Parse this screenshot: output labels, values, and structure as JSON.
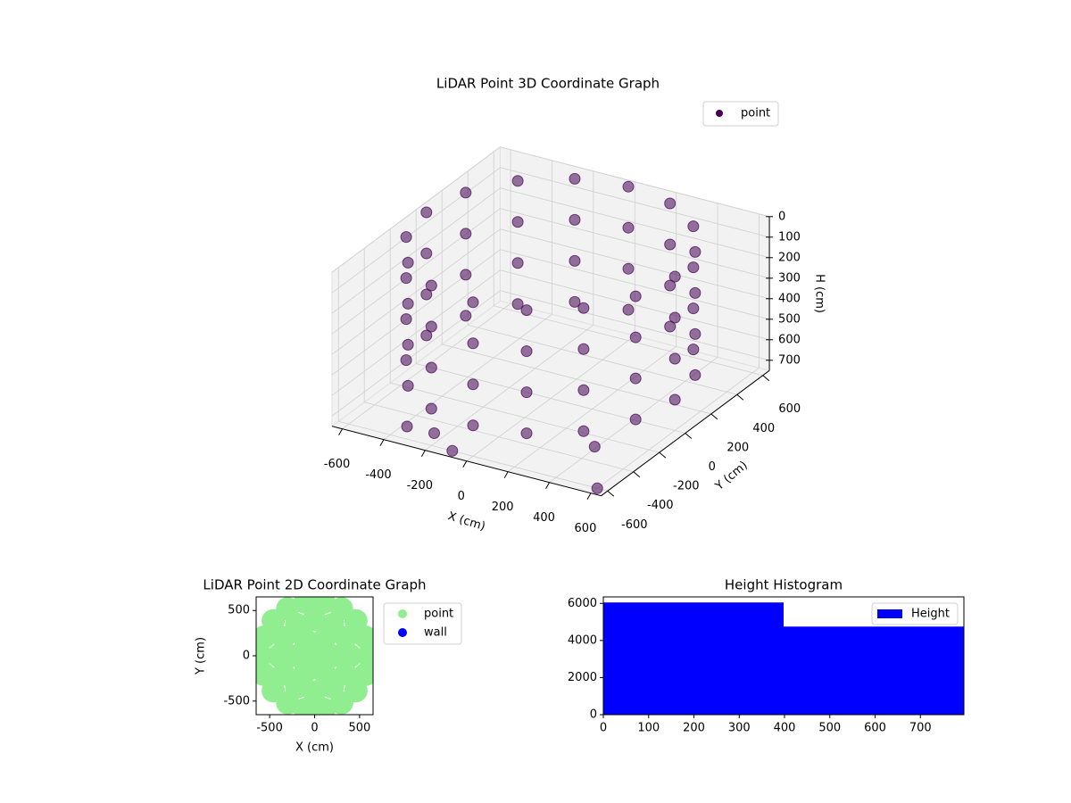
{
  "chart_data": [
    {
      "type": "scatter3d",
      "title": "LiDAR Point 3D Coordinate Graph",
      "xlabel": "X (cm)",
      "ylabel": "Y (cm)",
      "zlabel": "H (cm)",
      "xlim": [
        -650,
        650
      ],
      "ylim": [
        -650,
        650
      ],
      "zlim": [
        0,
        750
      ],
      "z_inverted": true,
      "xticks": [
        -600,
        -400,
        -200,
        0,
        200,
        400,
        600
      ],
      "yticks": [
        -600,
        -400,
        -200,
        0,
        200,
        400,
        600
      ],
      "zticks": [
        0,
        100,
        200,
        300,
        400,
        500,
        600,
        700
      ],
      "grid": true,
      "legend": "upper right",
      "series": [
        {
          "name": "point",
          "color": "#440154",
          "x": [
            600,
            554,
            424,
            230,
            0,
            -230,
            -424,
            -554,
            -600,
            -554,
            -424,
            -230,
            0,
            230,
            424,
            554,
            600,
            554,
            424,
            230,
            0,
            -230,
            -424,
            -554,
            -600,
            -554,
            -424,
            -230,
            0,
            230,
            424,
            554,
            600,
            554,
            424,
            230,
            0,
            -230,
            -424,
            -554,
            -600,
            -554,
            -424,
            -230,
            0,
            230,
            424,
            554,
            600,
            554,
            424,
            230,
            0,
            -230,
            -424,
            -554,
            -600,
            -554,
            -424,
            -230,
            0,
            230,
            424,
            554,
            -250,
            -100,
            400,
            600,
            -350
          ],
          "y": [
            0,
            230,
            424,
            554,
            600,
            554,
            424,
            230,
            0,
            -230,
            -424,
            -554,
            -600,
            -554,
            -424,
            -230,
            0,
            230,
            424,
            554,
            600,
            554,
            424,
            230,
            0,
            -230,
            -424,
            -554,
            -600,
            -554,
            -424,
            -230,
            0,
            230,
            424,
            554,
            600,
            554,
            424,
            230,
            0,
            -230,
            -424,
            -554,
            -600,
            -554,
            -424,
            -230,
            0,
            230,
            424,
            554,
            600,
            554,
            424,
            230,
            0,
            -230,
            -424,
            -554,
            -600,
            -554,
            -424,
            -230,
            -500,
            -600,
            -300,
            -600,
            -550
          ],
          "z": [
            0,
            0,
            0,
            0,
            0,
            0,
            0,
            0,
            0,
            0,
            0,
            0,
            0,
            0,
            0,
            0,
            200,
            200,
            200,
            200,
            200,
            200,
            200,
            200,
            200,
            200,
            200,
            200,
            200,
            200,
            200,
            200,
            400,
            400,
            400,
            400,
            400,
            400,
            400,
            400,
            400,
            400,
            400,
            400,
            400,
            400,
            400,
            400,
            600,
            600,
            600,
            600,
            600,
            600,
            600,
            600,
            600,
            600,
            600,
            600,
            600,
            600,
            600,
            600,
            750,
            750,
            740,
            750,
            720
          ]
        }
      ]
    },
    {
      "type": "scatter",
      "title": "LiDAR Point 2D Coordinate Graph",
      "xlabel": "X (cm)",
      "ylabel": "Y (cm)",
      "xlim": [
        -650,
        650
      ],
      "ylim": [
        -650,
        650
      ],
      "xticks": [
        -500,
        0,
        500
      ],
      "yticks": [
        -500,
        0,
        500
      ],
      "legend": "outside right",
      "series": [
        {
          "name": "point",
          "color": "#90ee90",
          "x": [
            0,
            200,
            100,
            -100,
            -200,
            -100,
            100,
            400,
            346,
            200,
            0,
            -200,
            -346,
            -400,
            -346,
            -200,
            0,
            200,
            346,
            600,
            564,
            460,
            300,
            104,
            -104,
            -300,
            -460,
            -564,
            -600,
            -564,
            -460,
            -300,
            -104,
            104,
            300,
            460,
            564
          ],
          "y": [
            0,
            0,
            173,
            173,
            0,
            -173,
            -173,
            0,
            200,
            346,
            400,
            346,
            200,
            0,
            -200,
            -346,
            -400,
            -346,
            -200,
            0,
            205,
            386,
            520,
            591,
            591,
            520,
            386,
            205,
            0,
            -205,
            -386,
            -520,
            -591,
            -591,
            -520,
            -386,
            -205
          ]
        },
        {
          "name": "wall",
          "color": "#0000ff",
          "x": [],
          "y": []
        }
      ]
    },
    {
      "type": "histogram",
      "title": "Height Histogram",
      "label": "Height",
      "color": "#0000ff",
      "bins": [
        0,
        398,
        796
      ],
      "counts": [
        6050,
        4750
      ],
      "xlim": [
        0,
        796
      ],
      "ylim": [
        0,
        6350
      ],
      "xticks": [
        0,
        100,
        200,
        300,
        400,
        500,
        600,
        700
      ],
      "yticks": [
        0,
        2000,
        4000,
        6000
      ],
      "legend": "upper right"
    }
  ]
}
